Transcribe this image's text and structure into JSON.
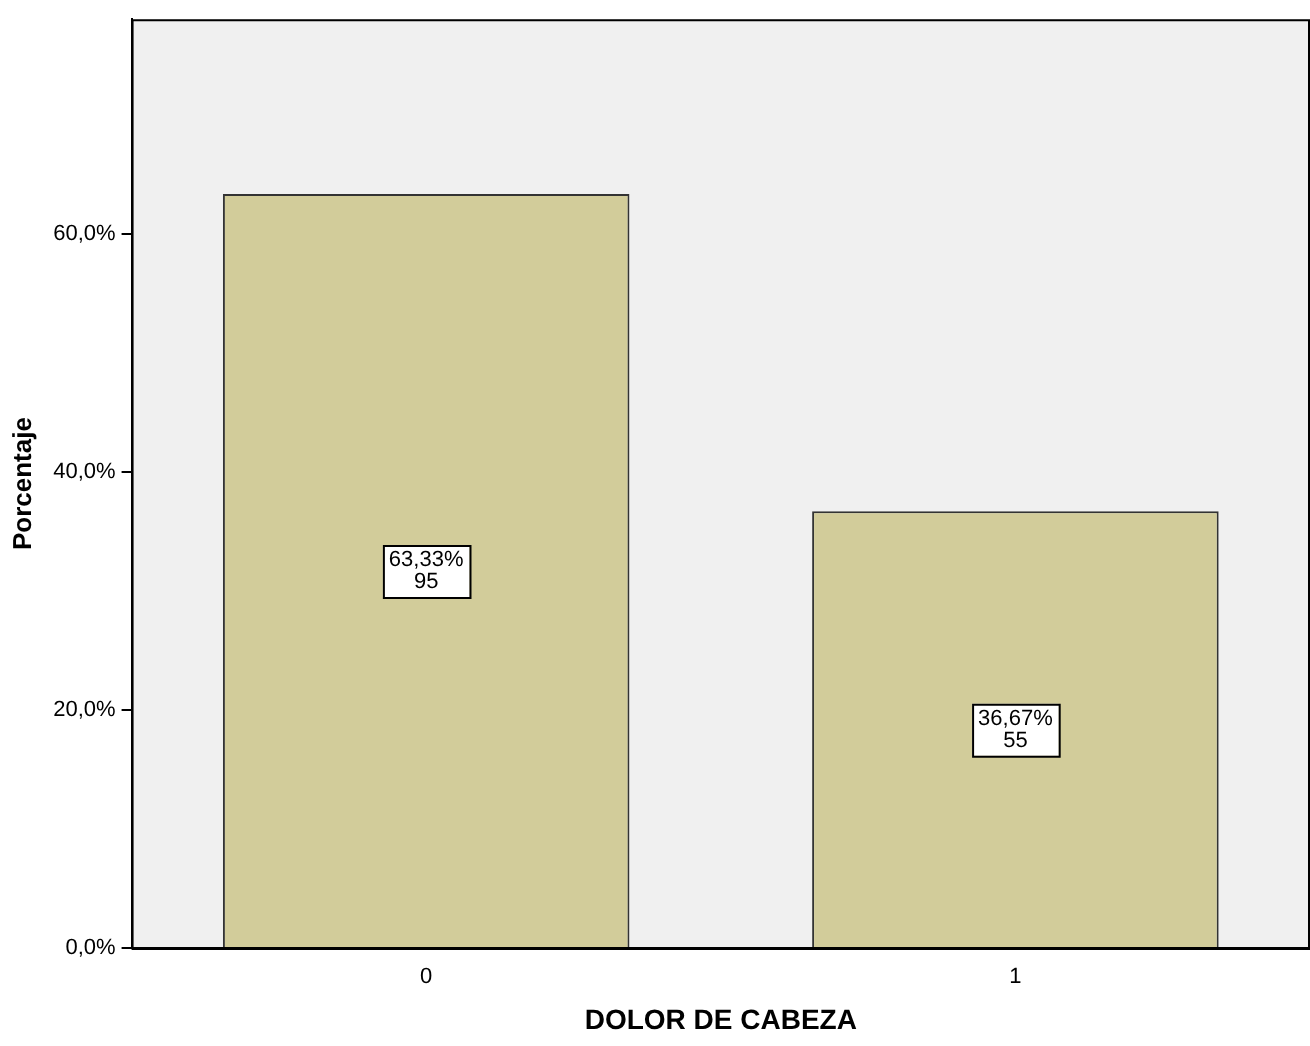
{
  "chart_data": {
    "type": "bar",
    "xlabel": "DOLOR DE CABEZA",
    "ylabel": "Porcentaje",
    "categories": [
      "0",
      "1"
    ],
    "values": [
      63.33,
      36.67
    ],
    "value_labels": [
      "63,33%\n95",
      "36,67%\n55"
    ],
    "color": "#d2cc9a",
    "ylim": [
      0,
      78
    ],
    "yticks": [
      {
        "value": 0,
        "label": "0,0%"
      },
      {
        "value": 20,
        "label": "20,0%"
      },
      {
        "value": 40,
        "label": "40,0%"
      },
      {
        "value": 60,
        "label": "60,0%"
      }
    ],
    "grid": false,
    "legend": false
  }
}
